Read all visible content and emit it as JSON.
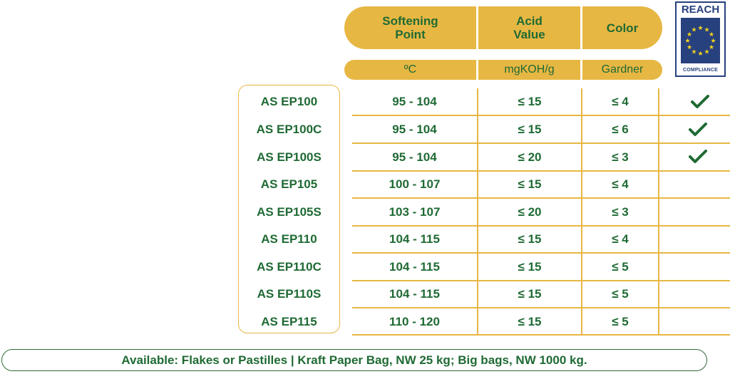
{
  "headers": {
    "softening_point": "Softening\nPoint",
    "acid_value": "Acid\nValue",
    "color": "Color"
  },
  "units": {
    "softening_point": "ºC",
    "acid_value": "mgKOH/g",
    "color": "Gardner"
  },
  "badge": {
    "top_text": "REACH",
    "bottom_text": "COMPLIANCE"
  },
  "rows": [
    {
      "product": "AS EP100",
      "softening": "95 - 104",
      "acid": "≤ 15",
      "color": "≤ 4",
      "reach": true
    },
    {
      "product": "AS EP100C",
      "softening": "95 - 104",
      "acid": "≤ 15",
      "color": "≤ 6",
      "reach": true
    },
    {
      "product": "AS EP100S",
      "softening": "95 - 104",
      "acid": "≤ 20",
      "color": "≤ 3",
      "reach": true
    },
    {
      "product": "AS EP105",
      "softening": "100 - 107",
      "acid": "≤ 15",
      "color": "≤ 4",
      "reach": false
    },
    {
      "product": "AS EP105S",
      "softening": "103 - 107",
      "acid": "≤ 20",
      "color": "≤ 3",
      "reach": false
    },
    {
      "product": "AS EP110",
      "softening": "104 - 115",
      "acid": "≤ 15",
      "color": "≤ 4",
      "reach": false
    },
    {
      "product": "AS EP110C",
      "softening": "104 - 115",
      "acid": "≤ 15",
      "color": "≤ 5",
      "reach": false
    },
    {
      "product": "AS EP110S",
      "softening": "104 - 115",
      "acid": "≤ 15",
      "color": "≤ 5",
      "reach": false
    },
    {
      "product": "AS EP115",
      "softening": "110 - 120",
      "acid": "≤ 15",
      "color": "≤ 5",
      "reach": false
    }
  ],
  "footer": "Available: Flakes or Pastilles | Kraft Paper Bag, NW 25 kg; Big bags, NW 1000 kg.",
  "colors": {
    "accent_gold": "#e7b743",
    "text_green": "#1f6a34",
    "reach_blue": "#27407e",
    "star_yellow": "#f2d21c"
  }
}
